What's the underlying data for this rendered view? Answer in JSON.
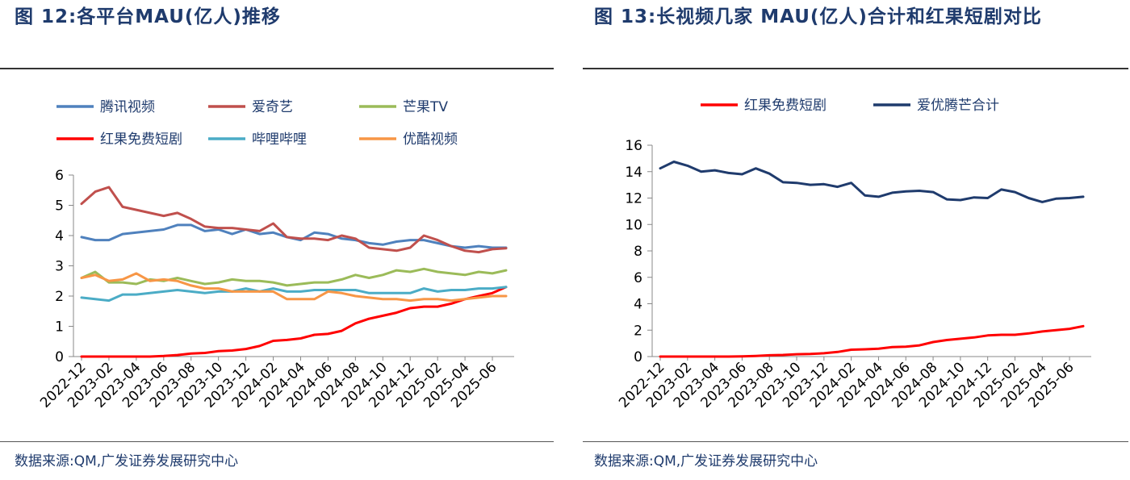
{
  "left": {
    "title": "图 12:各平台MAU(亿人)推移",
    "source": "数据来源:QM,广发证券发展研究中心"
  },
  "right": {
    "title": "图 13:长视频几家 MAU(亿人)合计和红果短剧对比",
    "source": "数据来源:QM,广发证券发展研究中心"
  },
  "chart_data": [
    {
      "type": "line",
      "title": "各平台MAU(亿人)推移",
      "ylim": [
        0,
        6
      ],
      "yticks": [
        0,
        1,
        2,
        3,
        4,
        5,
        6
      ],
      "x": [
        "2022-12",
        "2023-01",
        "2023-02",
        "2023-03",
        "2023-04",
        "2023-05",
        "2023-06",
        "2023-07",
        "2023-08",
        "2023-09",
        "2023-10",
        "2023-11",
        "2023-12",
        "2024-01",
        "2024-02",
        "2024-03",
        "2024-04",
        "2024-05",
        "2024-06",
        "2024-07",
        "2024-08",
        "2024-09",
        "2024-10",
        "2024-11",
        "2024-12",
        "2025-01",
        "2025-02",
        "2025-03",
        "2025-04",
        "2025-05",
        "2025-06",
        "2025-07"
      ],
      "xticks": [
        "2022-12",
        "2023-02",
        "2023-04",
        "2023-06",
        "2023-08",
        "2023-10",
        "2023-12",
        "2024-02",
        "2024-04",
        "2024-06",
        "2024-08",
        "2024-10",
        "2024-12",
        "2025-02",
        "2025-04",
        "2025-06"
      ],
      "legend": "top",
      "grid": false,
      "series": [
        {
          "name": "腾讯视频",
          "color": "#4f81bd",
          "values": [
            3.95,
            3.85,
            3.85,
            4.05,
            4.1,
            4.15,
            4.2,
            4.35,
            4.35,
            4.15,
            4.2,
            4.05,
            4.2,
            4.05,
            4.1,
            3.95,
            3.85,
            4.1,
            4.05,
            3.9,
            3.85,
            3.75,
            3.7,
            3.8,
            3.85,
            3.85,
            3.75,
            3.65,
            3.6,
            3.65,
            3.6,
            3.6
          ]
        },
        {
          "name": "爱奇艺",
          "color": "#c0504d",
          "values": [
            5.05,
            5.45,
            5.6,
            4.95,
            4.85,
            4.75,
            4.65,
            4.75,
            4.55,
            4.3,
            4.25,
            4.25,
            4.2,
            4.15,
            4.4,
            3.95,
            3.9,
            3.9,
            3.85,
            4.0,
            3.9,
            3.6,
            3.55,
            3.5,
            3.6,
            4.0,
            3.85,
            3.65,
            3.5,
            3.45,
            3.55,
            3.58
          ]
        },
        {
          "name": "芒果TV",
          "color": "#9bbb59",
          "values": [
            2.6,
            2.8,
            2.45,
            2.45,
            2.4,
            2.55,
            2.5,
            2.6,
            2.5,
            2.4,
            2.45,
            2.55,
            2.5,
            2.5,
            2.45,
            2.35,
            2.4,
            2.45,
            2.45,
            2.55,
            2.7,
            2.6,
            2.7,
            2.85,
            2.8,
            2.9,
            2.8,
            2.75,
            2.7,
            2.8,
            2.75,
            2.85
          ]
        },
        {
          "name": "红果免费短剧",
          "color": "#ff0000",
          "values": [
            0,
            0,
            0,
            0,
            0,
            0,
            0.02,
            0.05,
            0.1,
            0.12,
            0.18,
            0.2,
            0.25,
            0.35,
            0.52,
            0.55,
            0.6,
            0.72,
            0.75,
            0.85,
            1.1,
            1.25,
            1.35,
            1.45,
            1.6,
            1.65,
            1.65,
            1.75,
            1.9,
            2.0,
            2.1,
            2.3
          ]
        },
        {
          "name": "哔哩哔哩",
          "color": "#4bacc6",
          "values": [
            1.95,
            1.9,
            1.85,
            2.05,
            2.05,
            2.1,
            2.15,
            2.2,
            2.15,
            2.1,
            2.15,
            2.15,
            2.25,
            2.15,
            2.25,
            2.15,
            2.15,
            2.2,
            2.2,
            2.2,
            2.2,
            2.1,
            2.1,
            2.1,
            2.1,
            2.25,
            2.15,
            2.2,
            2.2,
            2.25,
            2.25,
            2.3
          ]
        },
        {
          "name": "优酷视频",
          "color": "#f79646",
          "values": [
            2.6,
            2.7,
            2.5,
            2.55,
            2.75,
            2.5,
            2.55,
            2.5,
            2.35,
            2.25,
            2.25,
            2.15,
            2.15,
            2.15,
            2.15,
            1.9,
            1.9,
            1.9,
            2.15,
            2.1,
            2.0,
            1.95,
            1.9,
            1.9,
            1.85,
            1.9,
            1.9,
            1.85,
            1.9,
            1.95,
            2.0,
            2.0
          ]
        }
      ]
    },
    {
      "type": "line",
      "title": "长视频几家 MAU(亿人)合计和红果短剧对比",
      "ylim": [
        0,
        16
      ],
      "yticks": [
        0,
        2,
        4,
        6,
        8,
        10,
        12,
        14,
        16
      ],
      "x": [
        "2022-12",
        "2023-01",
        "2023-02",
        "2023-03",
        "2023-04",
        "2023-05",
        "2023-06",
        "2023-07",
        "2023-08",
        "2023-09",
        "2023-10",
        "2023-11",
        "2023-12",
        "2024-01",
        "2024-02",
        "2024-03",
        "2024-04",
        "2024-05",
        "2024-06",
        "2024-07",
        "2024-08",
        "2024-09",
        "2024-10",
        "2024-11",
        "2024-12",
        "2025-01",
        "2025-02",
        "2025-03",
        "2025-04",
        "2025-05",
        "2025-06",
        "2025-07"
      ],
      "xticks": [
        "2022-12",
        "2023-02",
        "2023-04",
        "2023-06",
        "2023-08",
        "2023-10",
        "2023-12",
        "2024-02",
        "2024-04",
        "2024-06",
        "2024-08",
        "2024-10",
        "2024-12",
        "2025-02",
        "2025-04",
        "2025-06"
      ],
      "legend": "top",
      "grid": false,
      "series": [
        {
          "name": "红果免费短剧",
          "color": "#ff0000",
          "values": [
            0,
            0,
            0,
            0,
            0,
            0,
            0.02,
            0.05,
            0.1,
            0.12,
            0.18,
            0.2,
            0.25,
            0.35,
            0.52,
            0.55,
            0.6,
            0.72,
            0.75,
            0.85,
            1.1,
            1.25,
            1.35,
            1.45,
            1.6,
            1.65,
            1.65,
            1.75,
            1.9,
            2.0,
            2.1,
            2.3
          ]
        },
        {
          "name": "爱优腾芒合计",
          "color": "#1f3b6d",
          "values": [
            14.25,
            14.75,
            14.45,
            14.0,
            14.1,
            13.9,
            13.8,
            14.25,
            13.85,
            13.2,
            13.15,
            13.0,
            13.05,
            12.85,
            13.15,
            12.2,
            12.1,
            12.4,
            12.5,
            12.55,
            12.45,
            11.9,
            11.85,
            12.05,
            12.0,
            12.65,
            12.45,
            12.0,
            11.7,
            11.95,
            12.0,
            12.1
          ]
        }
      ]
    }
  ]
}
